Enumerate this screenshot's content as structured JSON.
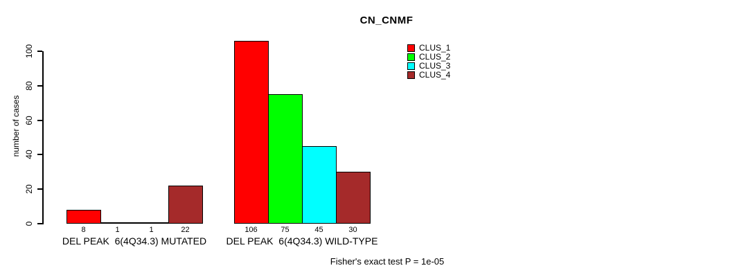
{
  "title": "CN_CNMF",
  "footer": "Fisher's exact test P = 1e-05",
  "colors": {
    "background": "#ffffff",
    "axis": "#000000",
    "clus_1": "#ff0000",
    "clus_2": "#00ff00",
    "clus_3": "#00ffff",
    "clus_4": "#a52a2a"
  },
  "chart_data": {
    "type": "bar",
    "title": "CN_CNMF",
    "xlabel": "",
    "ylabel": "number of cases",
    "ylim": [
      0,
      110
    ],
    "yticks": [
      0,
      20,
      40,
      60,
      80,
      100
    ],
    "grid": false,
    "bar_value_labels": true,
    "legend_position": "upper-middle-right",
    "series": [
      {
        "name": "CLUS_1",
        "color": "#ff0000"
      },
      {
        "name": "CLUS_2",
        "color": "#00ff00"
      },
      {
        "name": "CLUS_3",
        "color": "#00ffff"
      },
      {
        "name": "CLUS_4",
        "color": "#a52a2a"
      }
    ],
    "groups": [
      {
        "label": "DEL PEAK  6(4Q34.3) MUTATED",
        "values": [
          8,
          1,
          1,
          22
        ]
      },
      {
        "label": "DEL PEAK  6(4Q34.3) WILD-TYPE",
        "values": [
          106,
          75,
          45,
          30
        ]
      }
    ],
    "annotation": "Fisher's exact test P = 1e-05"
  }
}
